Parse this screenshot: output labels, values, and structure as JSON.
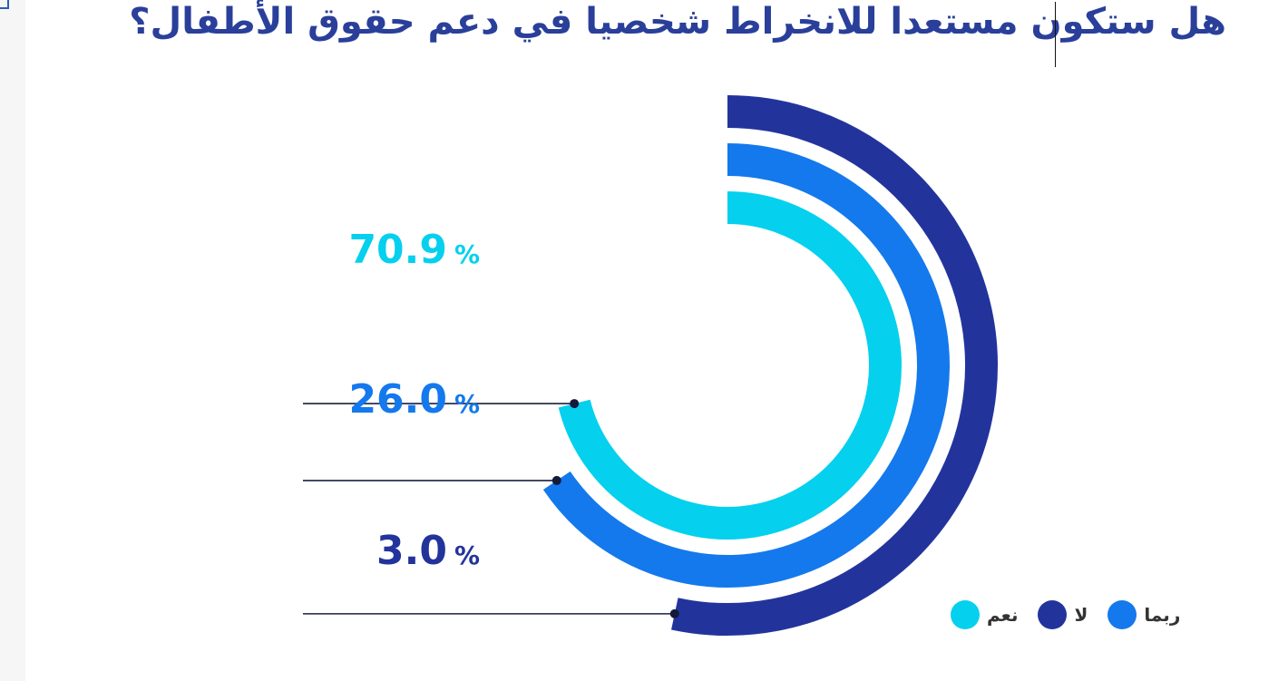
{
  "title": "هل ستكون مستعدا للانخراط شخصيا في دعم حقوق الأطفال؟",
  "chart_data": {
    "type": "radial-bar",
    "unit_symbol": "%",
    "series": [
      {
        "name": "نعم",
        "value": 70.9,
        "label": "70.9",
        "color": "#05d0ee"
      },
      {
        "name": "ربما",
        "value": 26.0,
        "label": "26.0",
        "color": "#1479ec"
      },
      {
        "name": "لا",
        "value": 3.0,
        "label": "3.0",
        "color": "#22349c"
      }
    ],
    "legend_order": [
      "نعم",
      "لا",
      "ربما"
    ],
    "legend_position": "bottom-right"
  }
}
